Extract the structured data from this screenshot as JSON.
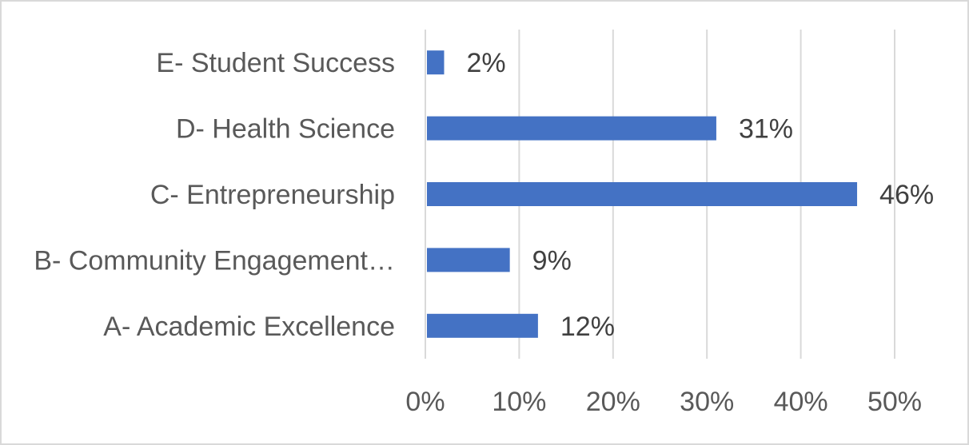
{
  "chart_data": {
    "type": "bar",
    "orientation": "horizontal",
    "categories": [
      "A- Academic Excellence",
      "B- Community Engagement…",
      "C- Entrepreneurship",
      "D- Health Science",
      "E- Student Success"
    ],
    "values": [
      12,
      9,
      46,
      31,
      2
    ],
    "data_labels": [
      "12%",
      "9%",
      "46%",
      "31%",
      "2%"
    ],
    "value_unit": "%",
    "xlim": [
      0,
      50
    ],
    "xticks": [
      0,
      10,
      20,
      30,
      40,
      50
    ],
    "xtick_labels": [
      "0%",
      "10%",
      "20%",
      "30%",
      "40%",
      "50%"
    ],
    "title": "",
    "xlabel": "",
    "ylabel": "",
    "grid": "vertical",
    "legend": "none",
    "colors": {
      "bar": "#4472c4",
      "grid": "#d9d9d9",
      "text": "#595959",
      "border": "#d9d9d9"
    }
  }
}
